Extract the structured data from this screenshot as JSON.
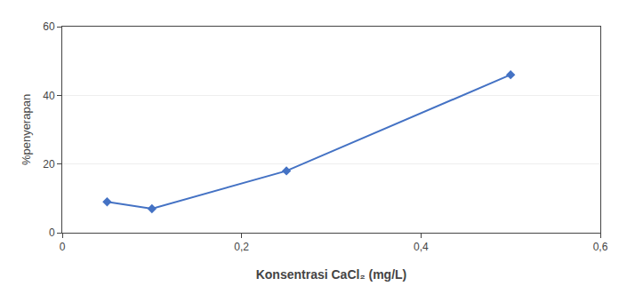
{
  "chart_data": {
    "type": "line",
    "x": [
      0.05,
      0.1,
      0.25,
      0.5
    ],
    "values": [
      9,
      7,
      18,
      46
    ],
    "color": "#4472C4",
    "marker": "diamond",
    "xlabel": "Konsentrasi CaCl₂ (mg/L)",
    "ylabel": "%penyerapan",
    "xlim": [
      0,
      0.6
    ],
    "ylim": [
      0,
      60
    ],
    "xticks": [
      0,
      {
        "value": 0.2,
        "label": "0,2"
      },
      {
        "value": 0.4,
        "label": "0,4"
      },
      {
        "value": 0.6,
        "label": "0,6"
      }
    ],
    "yticks": [
      0,
      20,
      40,
      60
    ],
    "grid": "y"
  }
}
